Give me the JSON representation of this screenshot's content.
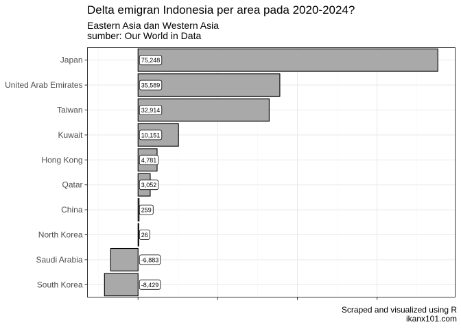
{
  "chart_data": {
    "type": "bar",
    "orientation": "horizontal",
    "title": "Delta emigran Indonesia per area pada 2020-2024?",
    "subtitle_lines": [
      "Eastern Asia dan Western Asia",
      "sumber: Our World in Data"
    ],
    "caption_lines": [
      "Scraped and visualized using R",
      "ikanx101.com"
    ],
    "categories": [
      "Japan",
      "United Arab Emirates",
      "Taiwan",
      "Kuwait",
      "Hong Kong",
      "Qatar",
      "China",
      "North Korea",
      "Saudi Arabia",
      "South Korea"
    ],
    "values": [
      75248,
      35589,
      32914,
      10151,
      4781,
      3052,
      259,
      26,
      -6883,
      -8429
    ],
    "labels": [
      "75,248",
      "35,589",
      "32,914",
      "10,151",
      "4,781",
      "3,052",
      "259",
      "26",
      "-6,883",
      "-8,429"
    ],
    "xlim": [
      -12700,
      79600
    ],
    "x_major_breaks": [
      0,
      20000,
      40000,
      60000
    ],
    "x_tick_labels_shown": false,
    "xlabel": "",
    "ylabel": "",
    "grid": true,
    "legend": "none",
    "colors": {
      "bar_fill": "#a9a9a9",
      "bar_stroke": "#000000",
      "grid_major": "#ebebeb",
      "grid_minor": "#f5f5f5",
      "panel_border": "#333333",
      "axis_text": "#4d4d4d",
      "label_fill": "#ffffff"
    }
  }
}
